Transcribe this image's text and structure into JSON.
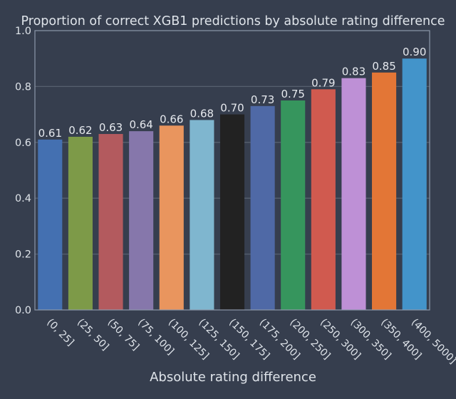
{
  "chart_data": {
    "type": "bar",
    "title": "Proportion of correct XGB1 predictions by absolute rating difference",
    "xlabel": "Absolute rating difference",
    "ylabel": "",
    "ylim": [
      0,
      1.0
    ],
    "yticks": [
      "0.0",
      "0.2",
      "0.4",
      "0.6",
      "0.8",
      "1.0"
    ],
    "grid": "horizontal",
    "categories": [
      "(0, 25]",
      "(25, 50]",
      "(50, 75]",
      "(75, 100]",
      "(100, 125]",
      "(125, 150]",
      "(150, 175]",
      "(175, 200]",
      "(200, 250]",
      "(250, 300]",
      "(300, 350]",
      "(350, 400]",
      "(400, 5000]"
    ],
    "values": [
      0.61,
      0.62,
      0.63,
      0.64,
      0.66,
      0.68,
      0.7,
      0.73,
      0.75,
      0.79,
      0.83,
      0.85,
      0.9
    ],
    "data_labels": [
      "0.61",
      "0.62",
      "0.63",
      "0.64",
      "0.66",
      "0.68",
      "0.70",
      "0.73",
      "0.75",
      "0.79",
      "0.83",
      "0.85",
      "0.90"
    ],
    "colors": [
      "#4470b1",
      "#7d9a48",
      "#b35a5e",
      "#8677ab",
      "#e9955e",
      "#7fb6cf",
      "#222222",
      "#4f69a6",
      "#36955d",
      "#d05a4f",
      "#be90d6",
      "#e37636",
      "#4394ca"
    ]
  },
  "theme": {
    "background": "#363e4e",
    "frame": "#8d98aa",
    "grid": "#56606f",
    "text": "#dfe4ea"
  }
}
